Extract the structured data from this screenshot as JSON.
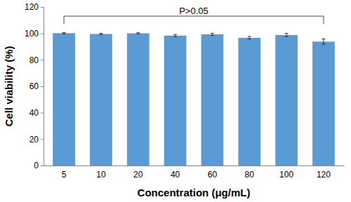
{
  "chart_data": {
    "type": "bar",
    "categories": [
      "5",
      "10",
      "20",
      "40",
      "60",
      "80",
      "100",
      "120"
    ],
    "values": [
      100.2,
      99.6,
      100.1,
      98.4,
      99.3,
      96.7,
      98.8,
      93.8
    ],
    "errors": [
      0.5,
      0.5,
      0.4,
      0.8,
      0.8,
      1.0,
      1.2,
      2.0
    ],
    "color": "#5b9bd5",
    "x_label": "Concentration (μg/mL)",
    "y_label": "Cell viability (%)",
    "annotation": "P>0.05",
    "ylim": [
      0,
      120
    ],
    "yticks": [
      0,
      20,
      40,
      60,
      80,
      100,
      120
    ],
    "grid": false
  }
}
